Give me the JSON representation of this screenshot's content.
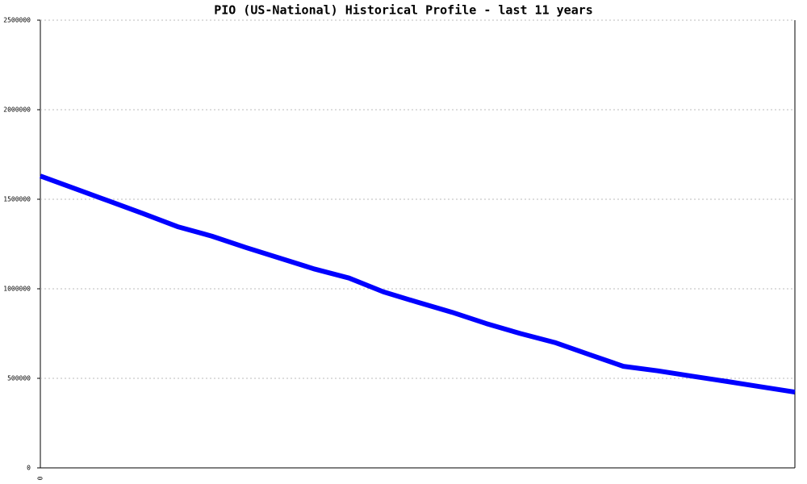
{
  "chart_data": {
    "type": "line",
    "title": "PIO (US-National) Historical Profile - last 11 years",
    "categories": [
      "0",
      null,
      null,
      null,
      null,
      null,
      null,
      null,
      null,
      null,
      null,
      null,
      null,
      null,
      null,
      null,
      null,
      null,
      null,
      null,
      null,
      null,
      null
    ],
    "series": [
      {
        "name": "PIO",
        "color": "#0000ff",
        "values": [
          1630000,
          1560000,
          1490000,
          1420000,
          1347000,
          1294000,
          1230000,
          1170000,
          1110000,
          1060000,
          983000,
          925000,
          869000,
          806000,
          750000,
          700000,
          633000,
          567000,
          542000,
          512000,
          483000,
          453000,
          423000
        ]
      }
    ],
    "ylim": [
      0,
      2500000
    ],
    "yticks": [
      0,
      500000,
      1000000,
      1500000,
      2000000,
      2500000
    ],
    "grid": true
  }
}
